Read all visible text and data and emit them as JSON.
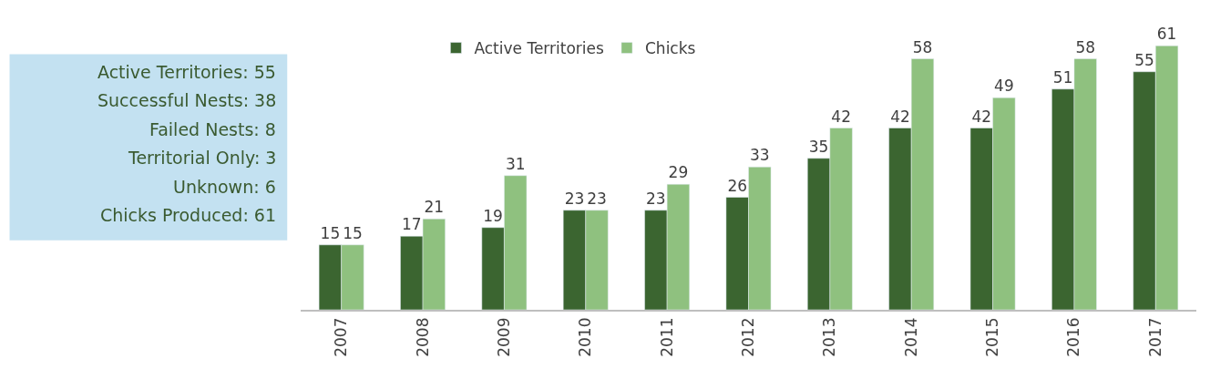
{
  "chart_data": {
    "type": "bar",
    "categories": [
      "2007",
      "2008",
      "2009",
      "2010",
      "2011",
      "2012",
      "2013",
      "2014",
      "2015",
      "2016",
      "2017"
    ],
    "series": [
      {
        "name": "Active Territories",
        "color": "#3b6530",
        "values": [
          15,
          17,
          19,
          23,
          23,
          26,
          35,
          42,
          42,
          51,
          55
        ]
      },
      {
        "name": "Chicks",
        "color": "#8fc17f",
        "values": [
          15,
          21,
          31,
          23,
          29,
          33,
          42,
          58,
          49,
          58,
          61
        ]
      }
    ],
    "data_labels": true,
    "legend": "top",
    "annotations": [
      "Active Territories: 55",
      "Successful Nests: 38",
      "Failed Nests: 8",
      "Territorial Only: 3",
      "Unknown: 6",
      "Chicks Produced: 61"
    ]
  }
}
